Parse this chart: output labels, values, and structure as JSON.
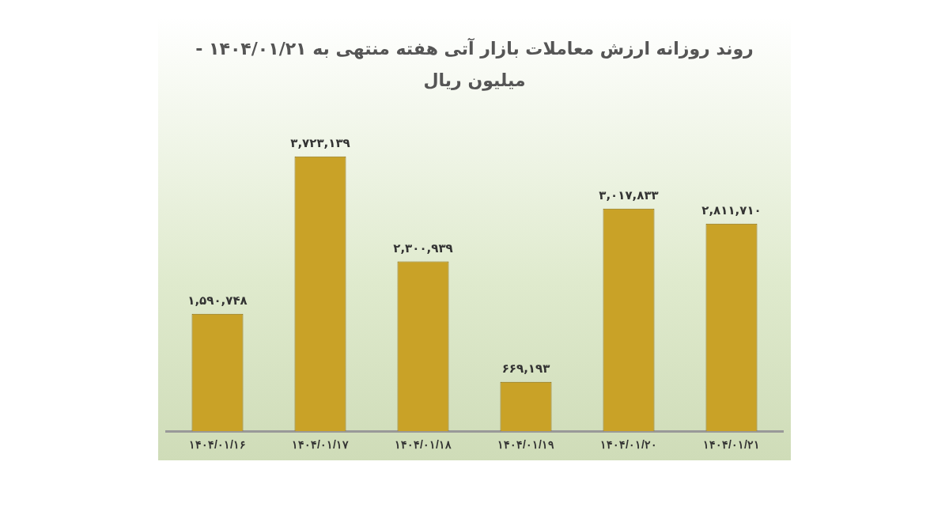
{
  "chart_data": {
    "type": "bar",
    "title": "روند روزانه ارزش معاملات بازار آتی هفته منتهی به ۱۴۰۴/۰۱/۲۱ - میلیون ریال",
    "categories": [
      "۱۴۰۴/۰۱/۱۶",
      "۱۴۰۴/۰۱/۱۷",
      "۱۴۰۴/۰۱/۱۸",
      "۱۴۰۴/۰۱/۱۹",
      "۱۴۰۴/۰۱/۲۰",
      "۱۴۰۴/۰۱/۲۱"
    ],
    "values": [
      1590748,
      3723139,
      2300939,
      669193,
      3017833,
      2811710
    ],
    "value_labels": [
      "۱,۵۹۰,۷۴۸",
      "۳,۷۲۳,۱۳۹",
      "۲,۳۰۰,۹۳۹",
      "۶۶۹,۱۹۳",
      "۳,۰۱۷,۸۳۳",
      "۲,۸۱۱,۷۱۰"
    ],
    "color": "#c9a227",
    "grid": false,
    "legend": false
  }
}
